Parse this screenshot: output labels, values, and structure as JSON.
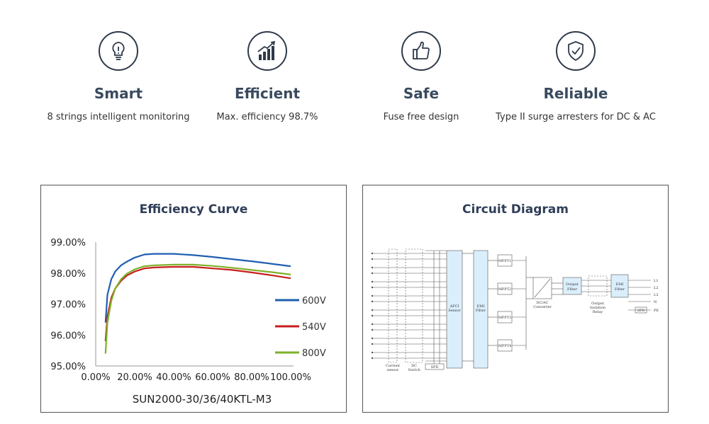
{
  "features": [
    {
      "title": "Smart",
      "desc": "8 strings intelligent monitoring",
      "icon": "lightbulb-icon"
    },
    {
      "title": "Efficient",
      "desc": "Max. efficiency 98.7%",
      "icon": "growth-chart-icon"
    },
    {
      "title": "Safe",
      "desc": "Fuse free design",
      "icon": "thumbs-up-icon"
    },
    {
      "title": "Reliable",
      "desc": "Type II surge arresters for DC & AC",
      "icon": "shield-check-icon"
    }
  ],
  "efficiency": {
    "title": "Efficiency Curve",
    "model": "SUN2000-30/36/40KTL-M3"
  },
  "chart_data": {
    "type": "line",
    "title": "Efficiency Curve",
    "xlabel": "SUN2000-30/36/40KTL-M3",
    "ylabel": "",
    "xlim": [
      0,
      100
    ],
    "ylim": [
      95,
      99
    ],
    "xticks": [
      "0.00%",
      "20.00%",
      "40.00%",
      "60.00%",
      "80.00%",
      "100.00%"
    ],
    "yticks": [
      "95.00%",
      "96.00%",
      "97.00%",
      "98.00%",
      "99.00%"
    ],
    "grid": false,
    "legend": "right",
    "series": [
      {
        "name": "600V",
        "color": "#1f5fb0",
        "x": [
          5,
          6,
          8,
          10,
          13,
          16,
          20,
          25,
          30,
          40,
          50,
          60,
          70,
          80,
          90,
          100
        ],
        "y": [
          96.4,
          97.3,
          97.8,
          98.05,
          98.25,
          98.37,
          98.5,
          98.6,
          98.62,
          98.62,
          98.58,
          98.52,
          98.45,
          98.38,
          98.3,
          98.22
        ]
      },
      {
        "name": "540V",
        "color": "#c81e1e",
        "x": [
          5,
          6,
          8,
          10,
          13,
          16,
          20,
          25,
          30,
          40,
          50,
          60,
          70,
          80,
          90,
          100
        ],
        "y": [
          95.8,
          96.6,
          97.2,
          97.5,
          97.75,
          97.92,
          98.05,
          98.15,
          98.18,
          98.2,
          98.2,
          98.15,
          98.1,
          98.02,
          97.93,
          97.83
        ]
      },
      {
        "name": "800V",
        "color": "#7fb02a",
        "x": [
          5,
          6,
          8,
          10,
          13,
          16,
          20,
          25,
          30,
          40,
          50,
          60,
          70,
          80,
          90,
          100
        ],
        "y": [
          95.4,
          96.4,
          97.1,
          97.5,
          97.8,
          97.98,
          98.12,
          98.22,
          98.25,
          98.27,
          98.27,
          98.23,
          98.17,
          98.1,
          98.03,
          97.95
        ]
      }
    ]
  },
  "circuit": {
    "title": "Circuit Diagram",
    "labels": {
      "current_sensor_1": "Current",
      "current_sensor_2": "sensor",
      "dc_switch_1": "DC",
      "dc_switch_2": "Switch",
      "spd_dc": "SPD",
      "afci_1": "AFCI",
      "afci_2": "Sensor",
      "emi_in_1": "EMI",
      "emi_in_2": "Filter",
      "mppt1": "MPPT1",
      "mppt2": "MPPT2",
      "mppt3": "MPPT3",
      "mppt4": "MPPT4",
      "dcac_1": "DC/AC",
      "dcac_2": "Converter",
      "out_filter_1": "Output",
      "out_filter_2": "Filter",
      "relay_1": "Output",
      "relay_2": "Isolation",
      "relay_3": "Relay",
      "emi_out_1": "EMI",
      "emi_out_2": "Filter",
      "spd_ac": "SPD",
      "l1": "L1",
      "l2": "L2",
      "l3": "L3",
      "n": "N",
      "pe": "PE"
    }
  }
}
